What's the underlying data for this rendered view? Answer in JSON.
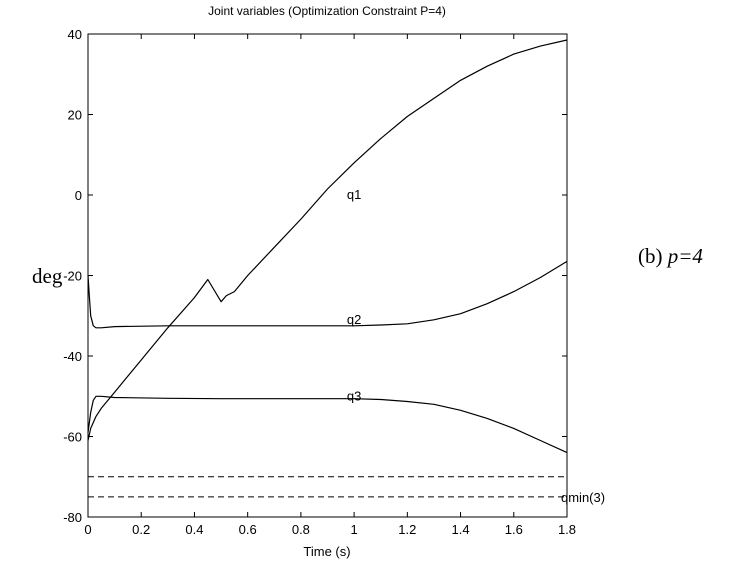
{
  "chart_data": {
    "type": "line",
    "title": "Joint variables (Optimization Constraint P=4)",
    "xlabel": "Time (s)",
    "ylabel": "deg",
    "side_label_prefix": "(b) ",
    "side_label_italic": "p=4",
    "xlim": [
      0,
      1.8
    ],
    "ylim": [
      -80,
      40
    ],
    "xticks": [
      "0",
      "0.2",
      "0.4",
      "0.6",
      "0.8",
      "1",
      "1.2",
      "1.4",
      "1.6",
      "1.8"
    ],
    "yticks": [
      "40",
      "20",
      "0",
      "-20",
      "-40",
      "-60",
      "-80"
    ],
    "grid": false,
    "series": [
      {
        "name": "q1",
        "label_at": [
          1.0,
          0.0
        ],
        "x": [
          0,
          0.01,
          0.03,
          0.05,
          0.1,
          0.2,
          0.3,
          0.4,
          0.45,
          0.5,
          0.52,
          0.55,
          0.6,
          0.7,
          0.8,
          0.9,
          1.0,
          1.1,
          1.2,
          1.3,
          1.4,
          1.5,
          1.6,
          1.7,
          1.8
        ],
        "y": [
          -61,
          -58,
          -55,
          -53,
          -49,
          -41,
          -33,
          -25.5,
          -21,
          -26.5,
          -25,
          -24,
          -20,
          -13,
          -6,
          1.5,
          8,
          14,
          19.5,
          24,
          28.5,
          32,
          35,
          37,
          38.5
        ]
      },
      {
        "name": "q2",
        "label_at": [
          1.0,
          -31
        ],
        "x": [
          0,
          0.005,
          0.01,
          0.02,
          0.03,
          0.05,
          0.1,
          0.3,
          0.5,
          0.7,
          0.9,
          1.0,
          1.1,
          1.2,
          1.3,
          1.4,
          1.5,
          1.6,
          1.7,
          1.8
        ],
        "y": [
          -20,
          -25,
          -30,
          -32.5,
          -33,
          -33,
          -32.7,
          -32.5,
          -32.5,
          -32.5,
          -32.5,
          -32.5,
          -32.3,
          -32,
          -31,
          -29.5,
          -27,
          -24,
          -20.5,
          -16.5
        ]
      },
      {
        "name": "q3",
        "label_at": [
          1.0,
          -50
        ],
        "x": [
          0,
          0.01,
          0.02,
          0.03,
          0.05,
          0.1,
          0.3,
          0.5,
          0.7,
          0.9,
          1.0,
          1.1,
          1.2,
          1.3,
          1.4,
          1.5,
          1.6,
          1.7,
          1.8
        ],
        "y": [
          -59,
          -54,
          -51,
          -50,
          -50,
          -50.3,
          -50.5,
          -50.6,
          -50.6,
          -50.6,
          -50.6,
          -50.8,
          -51.3,
          -52,
          -53.5,
          -55.5,
          -58,
          -61,
          -64
        ]
      }
    ],
    "reference_lines": [
      {
        "name": "qmin-upper",
        "y": -70,
        "style": "dashed"
      },
      {
        "name": "qmin(3)",
        "label": "qmin(3)",
        "y": -75,
        "style": "dashed"
      }
    ],
    "colors": {
      "line": "#000000",
      "background": "#ffffff"
    }
  }
}
